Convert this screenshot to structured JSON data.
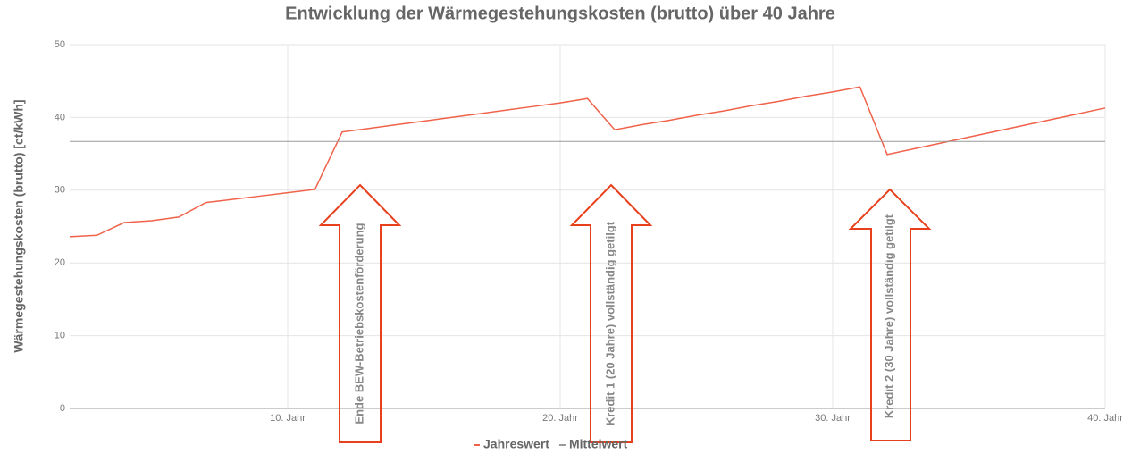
{
  "chart_data": {
    "type": "line",
    "title": "Entwicklung der Wärmegestehungskosten (brutto) über 40 Jahre",
    "y_label": "Wärmegestehungskosten (brutto) [ct/kWh]",
    "x": [
      2,
      3,
      4,
      5,
      6,
      7,
      8,
      9,
      10,
      11,
      12,
      13,
      14,
      15,
      16,
      17,
      18,
      19,
      20,
      21,
      22,
      23,
      24,
      25,
      26,
      27,
      28,
      29,
      30,
      31,
      32,
      33,
      34,
      35,
      36,
      37,
      38,
      39,
      40
    ],
    "series": [
      {
        "name": "Jahreswert",
        "color": "#f0624a",
        "values": [
          23.6,
          23.8,
          25.55,
          25.8,
          26.3,
          28.3,
          28.75,
          29.2,
          29.65,
          30.1,
          38.0,
          38.5,
          39.0,
          39.5,
          40.0,
          40.5,
          41.0,
          41.5,
          42.0,
          42.6,
          38.3,
          39.0,
          39.6,
          40.3,
          40.9,
          41.6,
          42.2,
          42.9,
          43.5,
          44.2,
          34.9,
          35.7,
          36.5,
          37.3,
          38.1,
          38.9,
          39.7,
          40.5,
          41.3
        ]
      },
      {
        "name": "Mittelwert",
        "color": "#999999",
        "values": [
          36.7,
          36.7,
          36.7,
          36.7,
          36.7,
          36.7,
          36.7,
          36.7,
          36.7,
          36.7,
          36.7,
          36.7,
          36.7,
          36.7,
          36.7,
          36.7,
          36.7,
          36.7,
          36.7,
          36.7,
          36.7,
          36.7,
          36.7,
          36.7,
          36.7,
          36.7,
          36.7,
          36.7,
          36.7,
          36.7,
          36.7,
          36.7,
          36.7,
          36.7,
          36.7,
          36.7,
          36.7,
          36.7,
          36.7
        ]
      }
    ],
    "xlim": [
      2,
      40
    ],
    "xticks": [
      {
        "value": 10,
        "label": "10. Jahr"
      },
      {
        "value": 20,
        "label": "20. Jahr"
      },
      {
        "value": 30,
        "label": "30. Jahr"
      },
      {
        "value": 40,
        "label": "40. Jahr"
      }
    ],
    "ylim": [
      0,
      50
    ],
    "yticks": [
      0,
      10,
      20,
      30,
      40,
      50
    ],
    "grid": true,
    "legend": "bottom",
    "annotations": [
      "Ende BEW-Betriebskostenförderung",
      "Kredit 1 (20 Jahre) vollständig getilgt",
      "Kredit 2 (30 Jahre) vollständig getilgt"
    ]
  }
}
